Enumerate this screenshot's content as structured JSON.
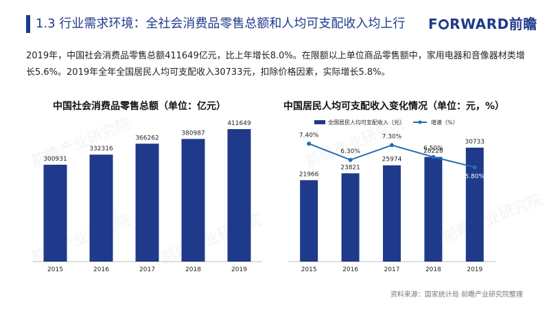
{
  "header": {
    "title": "1.3 行业需求环境：全社会消费品零售总额和人均可支配收入均上行",
    "logo_text_a": "F",
    "logo_text_b": "RWARD",
    "logo_text_cn": "前瞻"
  },
  "intro_text": "2019年，中国社会消费品零售总额411649亿元，比上年增长8.0%。在限额以上单位商品零售额中，家用电器和音像器材类增长5.6%。2019年全年全国居民人均可支配收入30733元，扣除价格因素，实际增长5.8%。",
  "watermark": "前瞻产业研究院",
  "colors": {
    "bar": "#1f3a8a",
    "line": "#1f6fb5",
    "title": "#1f3a8a"
  },
  "chart_data": [
    {
      "type": "bar",
      "title": "中国社会消费品零售总额（单位：亿元）",
      "categories": [
        "2015",
        "2016",
        "2017",
        "2018",
        "2019"
      ],
      "values": [
        300931,
        332316,
        366262,
        380987,
        411649
      ],
      "value_labels": [
        "300931",
        "332316",
        "366262",
        "380987",
        "411649"
      ],
      "ylim": [
        0,
        450000
      ],
      "grid": false
    },
    {
      "type": "bar+line",
      "title": "中国居民人均可支配收入变化情况（单位：元，%）",
      "categories": [
        "2015",
        "2016",
        "2017",
        "2018",
        "2019"
      ],
      "series": [
        {
          "name": "全国居民人均可支配收入（元）",
          "type": "bar",
          "values": [
            21966,
            23821,
            25974,
            28228,
            30733
          ],
          "value_labels": [
            "21966",
            "23821",
            "25974",
            "28228",
            "30733"
          ]
        },
        {
          "name": "增速（%）",
          "type": "line",
          "values": [
            7.4,
            6.3,
            7.3,
            6.5,
            5.8
          ],
          "value_labels": [
            "7.40%",
            "6.30%",
            "7.30%",
            "6.50%",
            "5.80%"
          ]
        }
      ],
      "ylim_bar": [
        0,
        40000
      ],
      "ylim_line": [
        0,
        10
      ],
      "legend": "top",
      "grid": false
    }
  ],
  "source_text": "资料来源：国家统计局 前瞻产业研究院整理"
}
